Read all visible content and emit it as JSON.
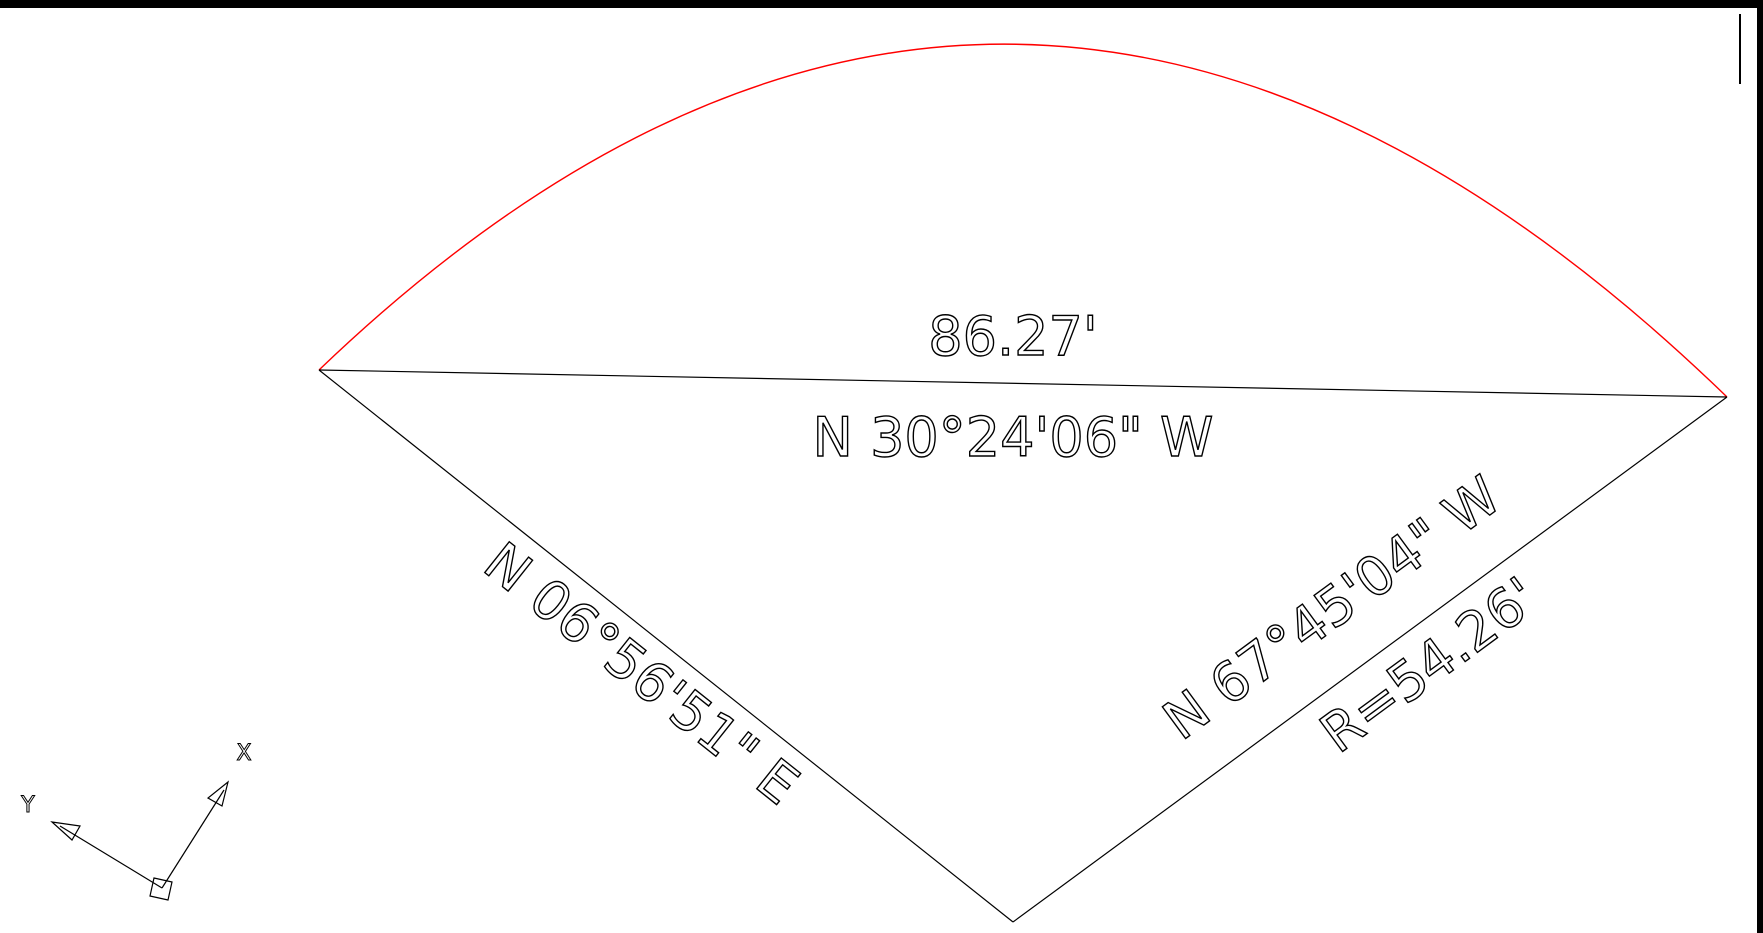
{
  "canvas": {
    "background_color": "#000000",
    "paper_color": "#ffffff",
    "line_color": "#000000",
    "arc_color": "#ff0000"
  },
  "labels": {
    "chord_length": "86.27'",
    "chord_bearing": "N 30°24'06\" W",
    "left_radial_bearing": "N 06°56'51\" E",
    "right_radial_bearing": "N 67°45'04\" W",
    "radius": "R=54.26'"
  },
  "ucs_icon": {
    "x_label": "X",
    "y_label": "Y"
  }
}
